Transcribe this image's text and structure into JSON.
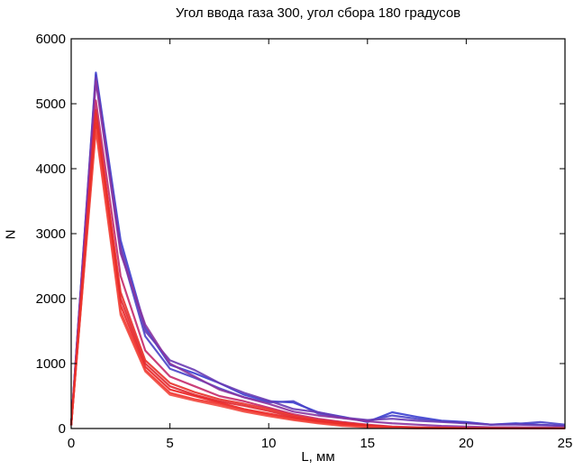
{
  "chart_data": {
    "type": "line",
    "title": "Угол ввода газа 300, угол сбора 180 градусов",
    "xlabel": "L, мм",
    "ylabel": "N",
    "xlim": [
      0,
      25
    ],
    "ylim": [
      0,
      6000
    ],
    "xticks": [
      0,
      5,
      10,
      15,
      20,
      25
    ],
    "yticks": [
      0,
      1000,
      2000,
      3000,
      4000,
      5000,
      6000
    ],
    "grid": false,
    "x": [
      0,
      1.25,
      2.5,
      3.75,
      5,
      6.25,
      7.5,
      8.75,
      10,
      11.25,
      12.5,
      13.75,
      15,
      16.25,
      17.5,
      18.75,
      20,
      21.25,
      22.5,
      23.75,
      25
    ],
    "series": [
      {
        "color": "#3b3fd0",
        "values": [
          50,
          5480,
          2900,
          1550,
          980,
          850,
          700,
          520,
          420,
          400,
          250,
          180,
          100,
          250,
          180,
          120,
          100,
          60,
          80,
          60,
          40
        ]
      },
      {
        "color": "#4a44c8",
        "values": [
          50,
          5450,
          2750,
          1420,
          920,
          780,
          620,
          480,
          400,
          420,
          230,
          160,
          120,
          200,
          150,
          110,
          90,
          60,
          70,
          100,
          60
        ]
      },
      {
        "color": "#6a3cb4",
        "values": [
          50,
          5400,
          2800,
          1500,
          1050,
          900,
          700,
          550,
          430,
          300,
          250,
          170,
          130,
          150,
          120,
          100,
          80,
          60,
          60,
          50,
          40
        ]
      },
      {
        "color": "#8a34a0",
        "values": [
          50,
          5350,
          2700,
          1600,
          1000,
          800,
          600,
          480,
          380,
          260,
          200,
          160,
          110,
          80,
          60,
          40,
          30,
          20,
          20,
          15,
          10
        ]
      },
      {
        "color": "#c42a6a",
        "values": [
          50,
          5050,
          2350,
          1200,
          800,
          650,
          500,
          420,
          320,
          220,
          150,
          100,
          60,
          30,
          20,
          15,
          10,
          10,
          5,
          5,
          5
        ]
      },
      {
        "color": "#e0262e",
        "values": [
          50,
          4900,
          2000,
          1000,
          650,
          520,
          420,
          350,
          270,
          180,
          120,
          80,
          40,
          20,
          10,
          10,
          5,
          5,
          5,
          5,
          5
        ]
      },
      {
        "color": "#ea2424",
        "values": [
          50,
          4700,
          1900,
          950,
          600,
          500,
          400,
          300,
          230,
          160,
          100,
          60,
          30,
          15,
          10,
          5,
          5,
          5,
          5,
          5,
          5
        ]
      },
      {
        "color": "#f0322e",
        "values": [
          50,
          4650,
          1800,
          900,
          550,
          450,
          380,
          280,
          210,
          140,
          90,
          50,
          25,
          10,
          5,
          5,
          5,
          5,
          5,
          5,
          5
        ]
      },
      {
        "color": "#f24a40",
        "values": [
          50,
          4600,
          1750,
          880,
          520,
          430,
          350,
          260,
          190,
          130,
          80,
          40,
          20,
          10,
          5,
          5,
          5,
          5,
          5,
          5,
          5
        ]
      },
      {
        "color": "#e8302a",
        "values": [
          50,
          4850,
          2100,
          1050,
          700,
          560,
          450,
          380,
          300,
          200,
          130,
          90,
          50,
          25,
          15,
          10,
          5,
          5,
          5,
          5,
          5
        ]
      }
    ]
  }
}
